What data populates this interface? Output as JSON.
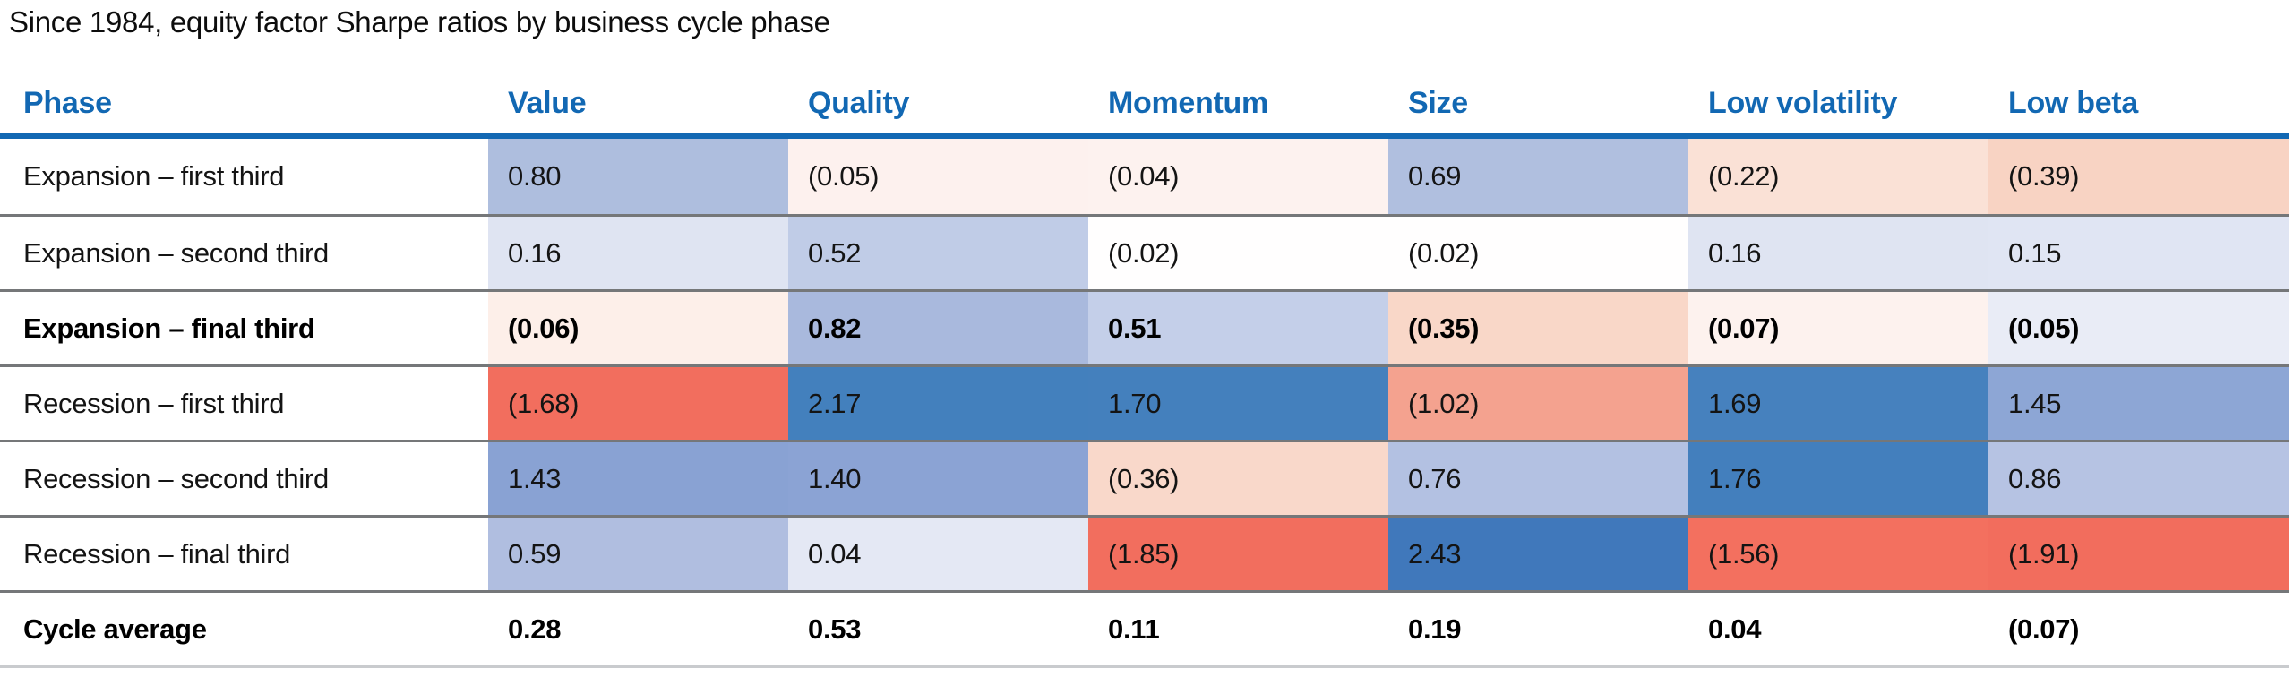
{
  "title": "Since 1984, equity factor Sharpe ratios by business cycle phase",
  "colors": {
    "header_text": "#1268b3",
    "header_rule": "#1268b3",
    "row_rule": "#757779",
    "bottom_rule": "#c9cbce",
    "positive_strong": "#4380bd",
    "negative_strong": "#f26e5e"
  },
  "table": {
    "headers": {
      "phase": "Phase",
      "col1": "Value",
      "col2": "Quality",
      "col3": "Momentum",
      "col4": "Size",
      "col5": "Low volatility",
      "col6": "Low beta"
    },
    "rows": [
      {
        "label": "Expansion – first third",
        "cells": [
          {
            "text": "0.80",
            "bg": "#aebede"
          },
          {
            "text": "(0.05)",
            "bg": "#fdf1ee"
          },
          {
            "text": "(0.04)",
            "bg": "#fdf2ef"
          },
          {
            "text": "0.69",
            "bg": "#b0bfdf"
          },
          {
            "text": "(0.22)",
            "bg": "#fae1d6"
          },
          {
            "text": "(0.39)",
            "bg": "#f8d3c3"
          }
        ]
      },
      {
        "label": "Expansion – second third",
        "cells": [
          {
            "text": "0.16",
            "bg": "#dfe4f2"
          },
          {
            "text": "0.52",
            "bg": "#c0cce7"
          },
          {
            "text": "(0.02)",
            "bg": "#fffefe"
          },
          {
            "text": "(0.02)",
            "bg": "#fffefe"
          },
          {
            "text": "0.16",
            "bg": "#dfe4f2"
          },
          {
            "text": "0.15",
            "bg": "#e0e5f3"
          }
        ]
      },
      {
        "label": "Expansion – final third",
        "cells": [
          {
            "text": "(0.06)",
            "bg": "#fdefe9"
          },
          {
            "text": "0.82",
            "bg": "#a9b9dd"
          },
          {
            "text": "0.51",
            "bg": "#c4cfe9"
          },
          {
            "text": "(0.35)",
            "bg": "#f9d7c8"
          },
          {
            "text": "(0.07)",
            "bg": "#fdf2ee"
          },
          {
            "text": "(0.05)",
            "bg": "#e9ecf6"
          }
        ]
      },
      {
        "label": "Recession – first third",
        "cells": [
          {
            "text": "(1.68)",
            "bg": "#f26e5e"
          },
          {
            "text": "2.17",
            "bg": "#4380bd"
          },
          {
            "text": "1.70",
            "bg": "#4480bd"
          },
          {
            "text": "(1.02)",
            "bg": "#f4a28f"
          },
          {
            "text": "1.69",
            "bg": "#4681be"
          },
          {
            "text": "1.45",
            "bg": "#8da6d5"
          }
        ]
      },
      {
        "label": "Recession – second third",
        "cells": [
          {
            "text": "1.43",
            "bg": "#89a2d3"
          },
          {
            "text": "1.40",
            "bg": "#8ba3d4"
          },
          {
            "text": "(0.36)",
            "bg": "#f9d8ca"
          },
          {
            "text": "0.76",
            "bg": "#b3c1e2"
          },
          {
            "text": "1.76",
            "bg": "#437fbd"
          },
          {
            "text": "0.86",
            "bg": "#b6c3e3"
          }
        ]
      },
      {
        "label": "Recession – final third",
        "cells": [
          {
            "text": "0.59",
            "bg": "#b0bee0"
          },
          {
            "text": "0.04",
            "bg": "#e4e8f4"
          },
          {
            "text": "(1.85)",
            "bg": "#f26e5e"
          },
          {
            "text": "2.43",
            "bg": "#4078bb"
          },
          {
            "text": "(1.56)",
            "bg": "#f3705f"
          },
          {
            "text": "(1.91)",
            "bg": "#f26d5d"
          }
        ]
      },
      {
        "label": "Cycle average",
        "cells": [
          {
            "text": "0.28",
            "bg": "#ffffff"
          },
          {
            "text": "0.53",
            "bg": "#ffffff"
          },
          {
            "text": "0.11",
            "bg": "#ffffff"
          },
          {
            "text": "0.19",
            "bg": "#ffffff"
          },
          {
            "text": "0.04",
            "bg": "#ffffff"
          },
          {
            "text": "(0.07)",
            "bg": "#ffffff"
          }
        ]
      }
    ]
  },
  "chart_data": {
    "type": "heatmap",
    "title": "Since 1984, equity factor Sharpe ratios by business cycle phase",
    "columns": [
      "Value",
      "Quality",
      "Momentum",
      "Size",
      "Low volatility",
      "Low beta"
    ],
    "row_labels": [
      "Expansion – first third",
      "Expansion – second third",
      "Expansion – final third",
      "Recession – first third",
      "Recession – second third",
      "Recession – final third",
      "Cycle average"
    ],
    "values": [
      [
        0.8,
        -0.05,
        -0.04,
        0.69,
        -0.22,
        -0.39
      ],
      [
        0.16,
        0.52,
        -0.02,
        -0.02,
        0.16,
        0.15
      ],
      [
        -0.06,
        0.82,
        0.51,
        -0.35,
        -0.07,
        -0.05
      ],
      [
        -1.68,
        2.17,
        1.7,
        -1.02,
        1.69,
        1.45
      ],
      [
        1.43,
        1.4,
        -0.36,
        0.76,
        1.76,
        0.86
      ],
      [
        0.59,
        0.04,
        -1.85,
        2.43,
        -1.56,
        -1.91
      ],
      [
        0.28,
        0.53,
        0.11,
        0.19,
        0.04,
        -0.07
      ]
    ],
    "notes": "Negative values shown in parentheses; blue shading = higher/positive Sharpe ratio, red shading = lower/negative; Cycle average row has no shading; bold rows: Expansion – final third, Cycle average",
    "legend_position": "none",
    "grid": "horizontal rules between rows"
  }
}
